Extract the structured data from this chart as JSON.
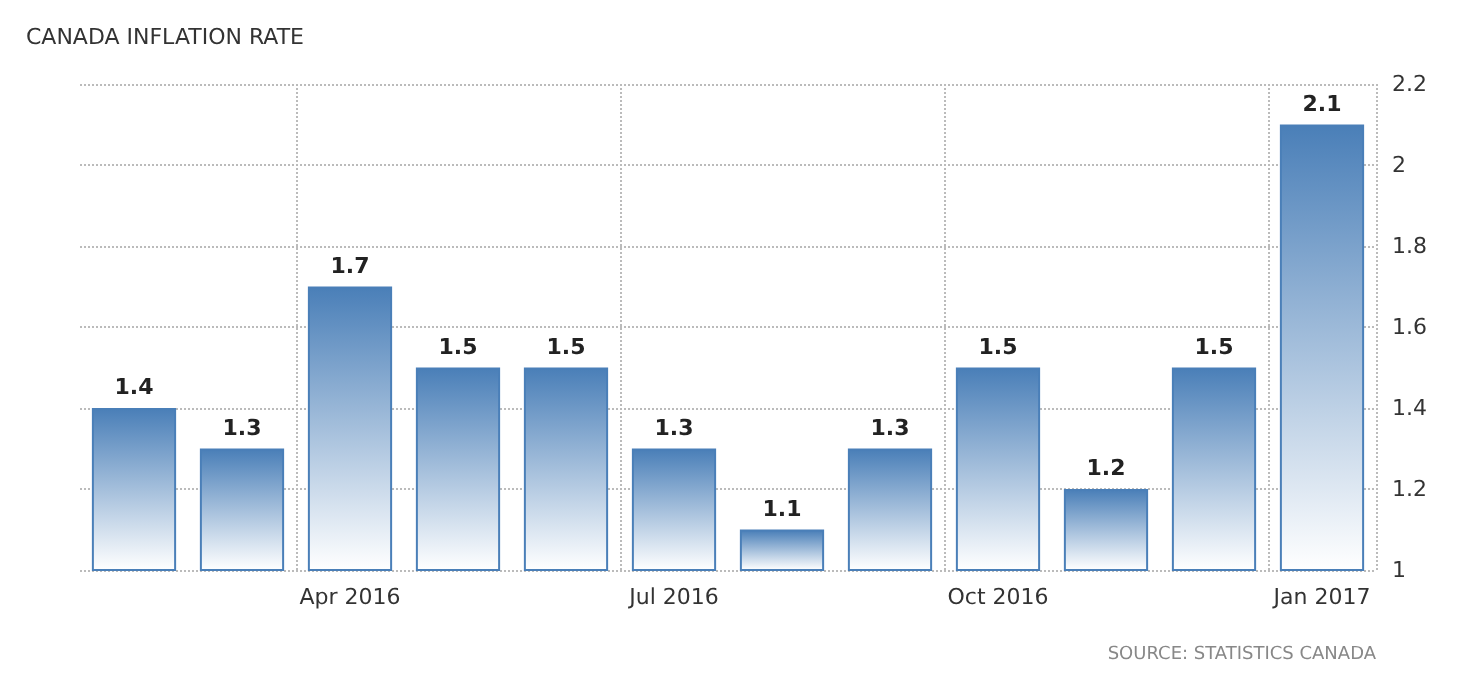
{
  "chart_data": {
    "type": "bar",
    "title": "CANADA INFLATION RATE",
    "categories": [
      null,
      null,
      "Apr 2016",
      null,
      null,
      "Jul 2016",
      null,
      null,
      "Oct 2016",
      null,
      null,
      "Jan 2017"
    ],
    "values": [
      1.4,
      1.3,
      1.7,
      1.5,
      1.5,
      1.3,
      1.1,
      1.3,
      1.5,
      1.2,
      1.5,
      2.1
    ],
    "color": "#4a7fb8",
    "ylim": [
      1,
      2.2
    ],
    "yticks": [
      1,
      1.2,
      1.4,
      1.6,
      1.8,
      2,
      2.2
    ],
    "data_labels": true,
    "grid": true,
    "annotations": [
      "SOURCE: STATISTICS CANADA"
    ]
  }
}
